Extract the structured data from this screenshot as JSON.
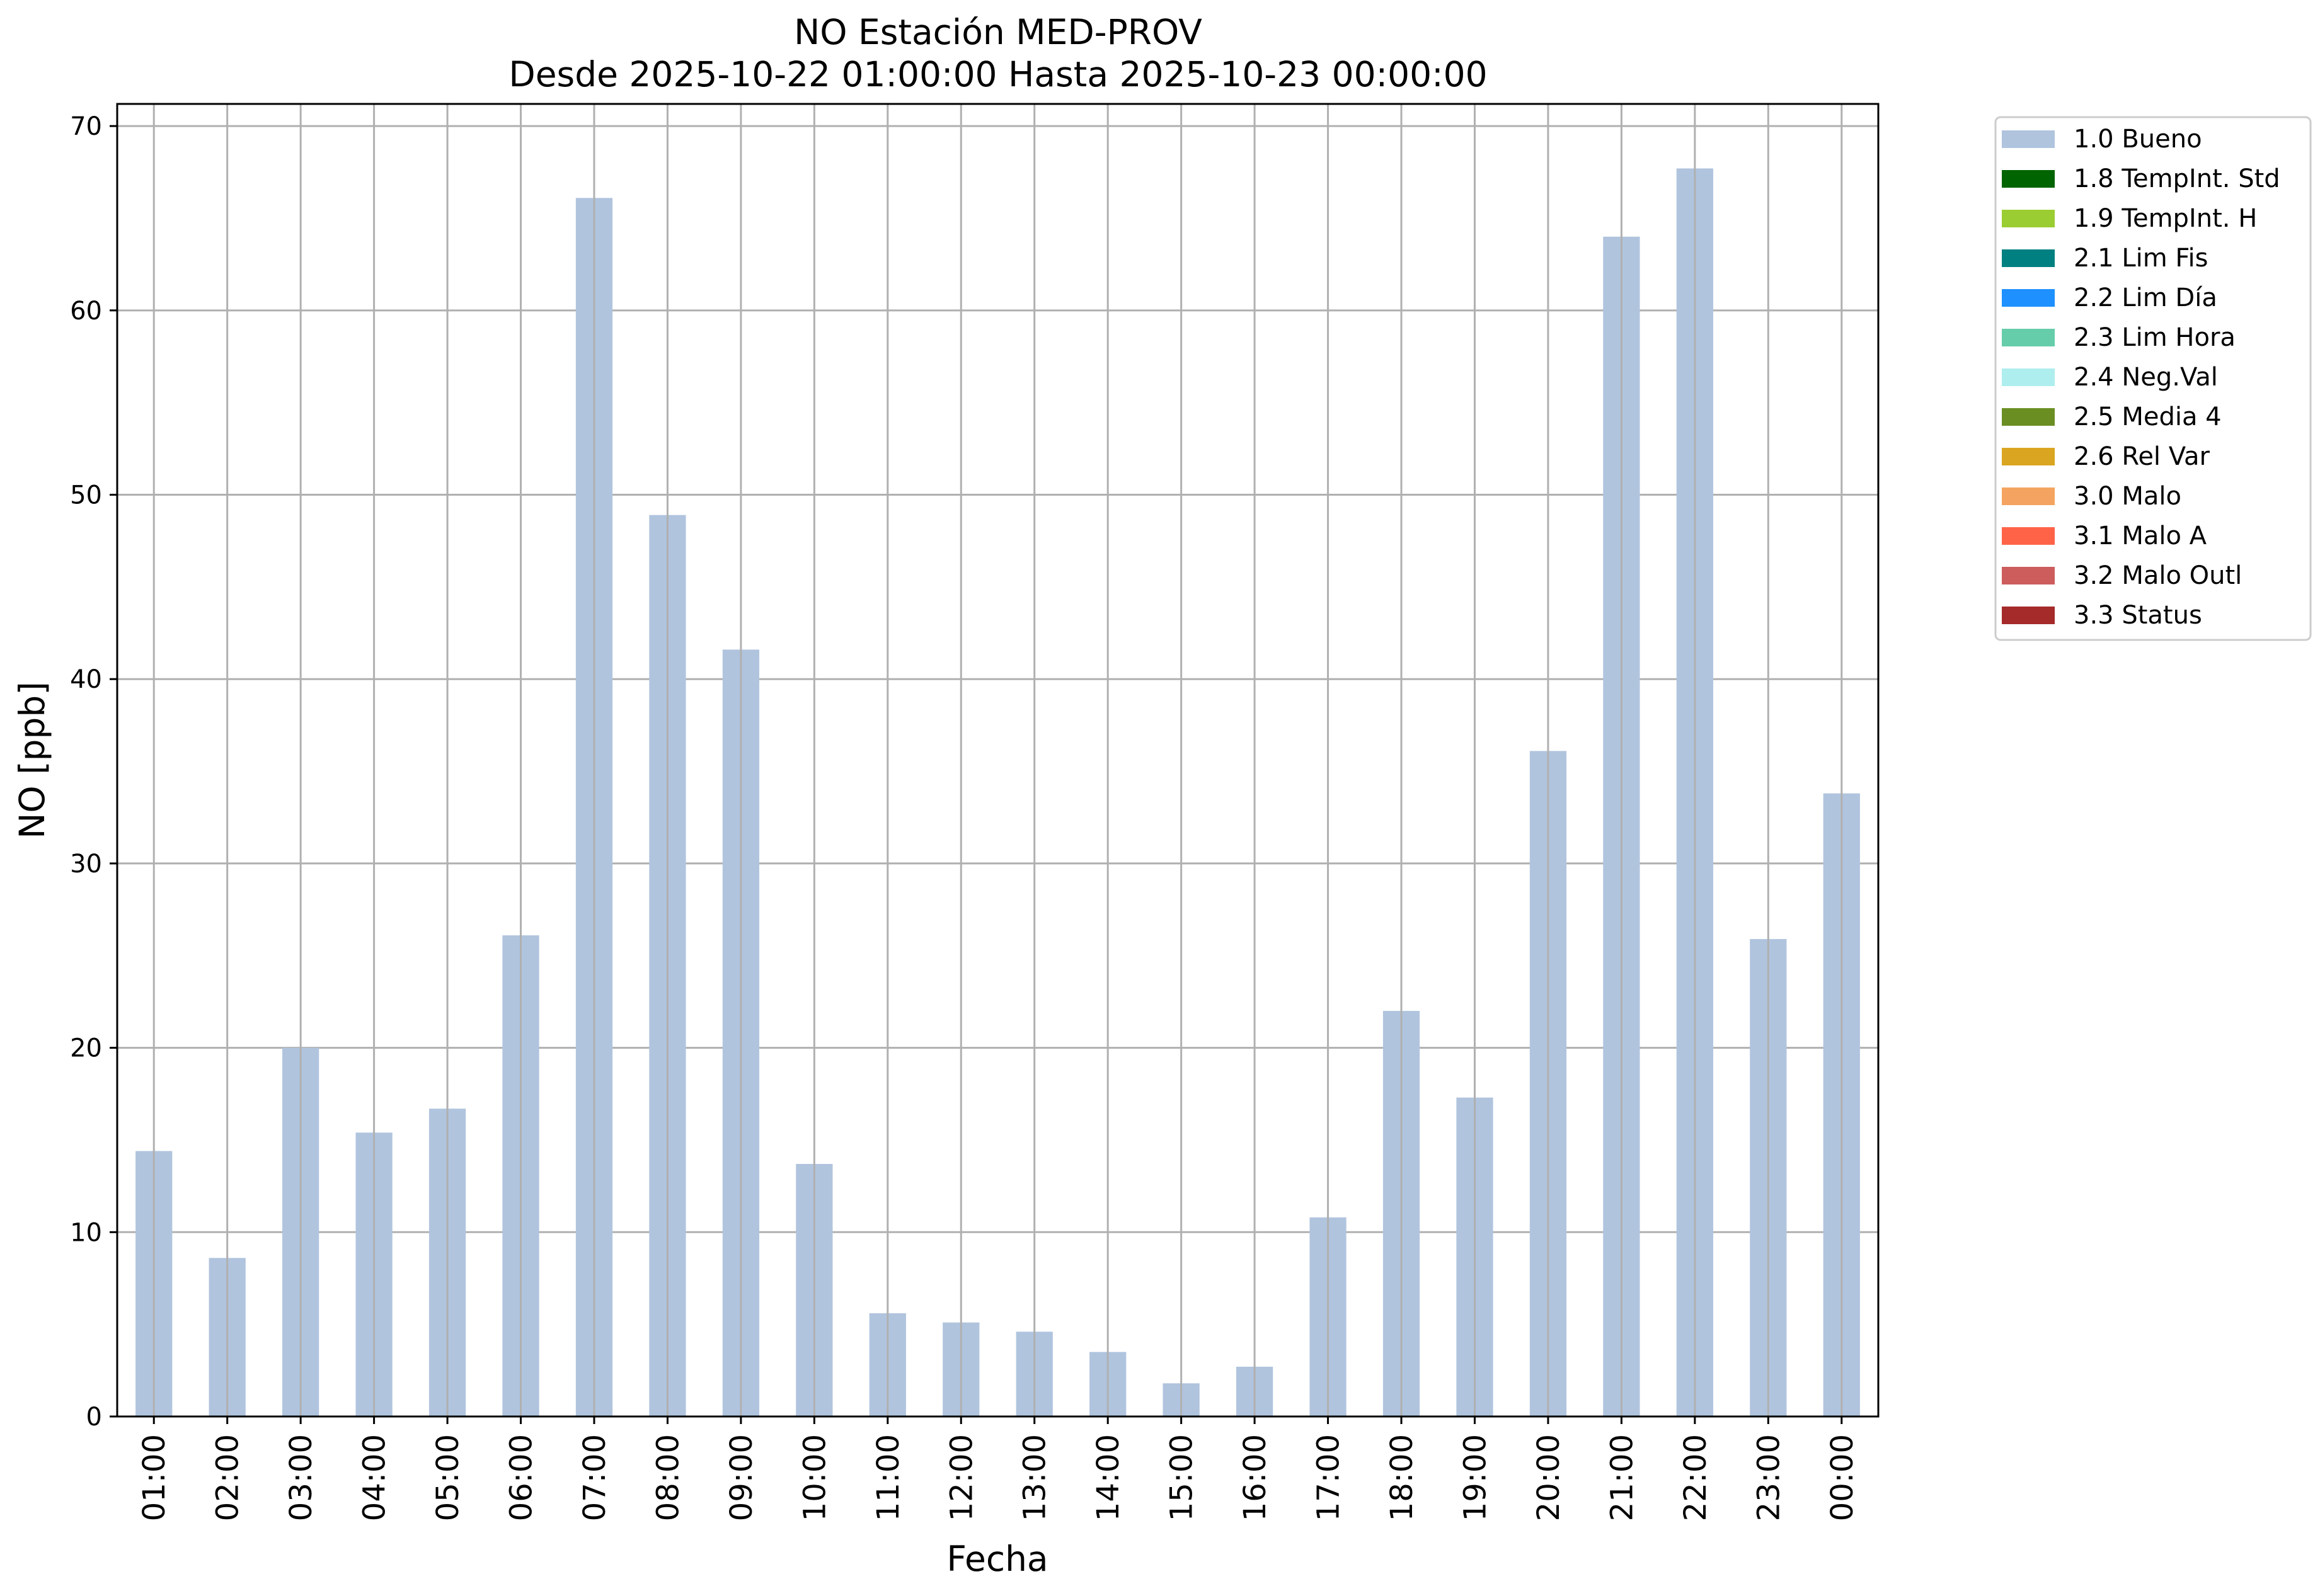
{
  "chart_data": {
    "type": "bar",
    "title": "NO Estación MED-PROV",
    "subtitle": "Desde 2025-10-22 01:00:00 Hasta 2025-10-23 00:00:00",
    "xlabel": "Fecha",
    "ylabel": "NO [ppb]",
    "ylim": [
      0,
      71.2
    ],
    "yticks": [
      0,
      10,
      20,
      30,
      40,
      50,
      60,
      70
    ],
    "grid": true,
    "legend_position": "outside-top-right",
    "categories": [
      "01:00",
      "02:00",
      "03:00",
      "04:00",
      "05:00",
      "06:00",
      "07:00",
      "08:00",
      "09:00",
      "10:00",
      "11:00",
      "12:00",
      "13:00",
      "14:00",
      "15:00",
      "16:00",
      "17:00",
      "18:00",
      "19:00",
      "20:00",
      "21:00",
      "22:00",
      "23:00",
      "00:00"
    ],
    "series": [
      {
        "name": "1.0 Bueno",
        "color": "#b0c4de",
        "values": [
          14.4,
          8.6,
          20.0,
          15.4,
          16.7,
          26.1,
          66.1,
          48.9,
          41.6,
          13.7,
          5.6,
          5.1,
          4.6,
          3.5,
          1.8,
          2.7,
          10.8,
          22.0,
          17.3,
          36.1,
          64.0,
          67.7,
          25.9,
          33.8
        ]
      }
    ],
    "legend": [
      {
        "label": "1.0 Bueno",
        "color": "#b0c4de"
      },
      {
        "label": "1.8 TempInt. Std",
        "color": "#006400"
      },
      {
        "label": "1.9 TempInt. H",
        "color": "#9acd32"
      },
      {
        "label": "2.1 Lim Fis",
        "color": "#008080"
      },
      {
        "label": "2.2 Lim Día",
        "color": "#1e90ff"
      },
      {
        "label": "2.3 Lim Hora",
        "color": "#66cdaa"
      },
      {
        "label": "2.4 Neg.Val",
        "color": "#afeeee"
      },
      {
        "label": "2.5 Media 4",
        "color": "#6b8e23"
      },
      {
        "label": "2.6 Rel Var",
        "color": "#daa520"
      },
      {
        "label": "3.0 Malo",
        "color": "#f4a460"
      },
      {
        "label": "3.1 Malo A",
        "color": "#ff6347"
      },
      {
        "label": "3.2 Malo Outl",
        "color": "#cd5c5c"
      },
      {
        "label": "3.3 Status",
        "color": "#a52a2a"
      }
    ]
  }
}
